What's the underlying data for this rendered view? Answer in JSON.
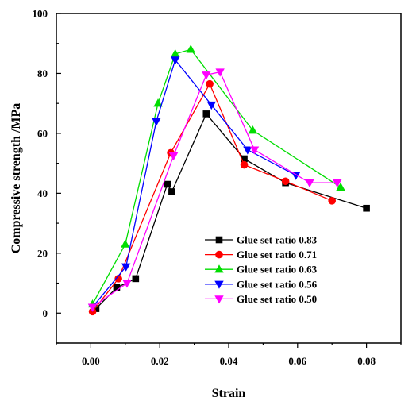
{
  "chart_data": {
    "type": "line",
    "xlabel": "Strain",
    "ylabel": "Compressive strength /MPa",
    "xlim": [
      -0.01,
      0.09
    ],
    "ylim": [
      -10,
      100
    ],
    "xticks": [
      "0.00",
      "0.02",
      "0.04",
      "0.06",
      "0.08"
    ],
    "yticks": [
      "0",
      "20",
      "40",
      "60",
      "80",
      "100"
    ],
    "legend_position": "lower-center",
    "series": [
      {
        "name": "Glue set ratio 0.83",
        "color": "#000000",
        "marker": "square",
        "x": [
          0.0015,
          0.0075,
          0.013,
          0.0222,
          0.0235,
          0.0335,
          0.0445,
          0.0565,
          0.08
        ],
        "y": [
          1.5,
          8.5,
          11.5,
          43.0,
          40.5,
          66.5,
          51.5,
          43.5,
          35.0
        ]
      },
      {
        "name": "Glue set ratio 0.71",
        "color": "#ff0000",
        "marker": "circle",
        "x": [
          0.0005,
          0.008,
          0.0232,
          0.0345,
          0.0445,
          0.0565,
          0.07
        ],
        "y": [
          0.5,
          11.5,
          53.5,
          76.5,
          49.5,
          44.0,
          37.5
        ]
      },
      {
        "name": "Glue set ratio 0.63",
        "color": "#00dd00",
        "marker": "triangle-up",
        "x": [
          0.0005,
          0.01,
          0.0195,
          0.0245,
          0.029,
          0.047,
          0.0725
        ],
        "y": [
          3.0,
          23.0,
          70.0,
          86.5,
          88.0,
          61.0,
          42.0
        ]
      },
      {
        "name": "Glue set ratio 0.56",
        "color": "#0000ff",
        "marker": "triangle-down",
        "x": [
          0.0005,
          0.0102,
          0.019,
          0.0245,
          0.035,
          0.0455,
          0.0595
        ],
        "y": [
          2.0,
          15.5,
          64.0,
          84.5,
          69.5,
          54.5,
          46.0
        ]
      },
      {
        "name": "Glue set ratio 0.50",
        "color": "#ff00ff",
        "marker": "triangle-down",
        "x": [
          0.0005,
          0.0105,
          0.024,
          0.0335,
          0.0375,
          0.0475,
          0.0635,
          0.0715
        ],
        "y": [
          2.0,
          10.0,
          52.5,
          79.5,
          80.5,
          54.5,
          43.5,
          43.5
        ]
      }
    ]
  }
}
